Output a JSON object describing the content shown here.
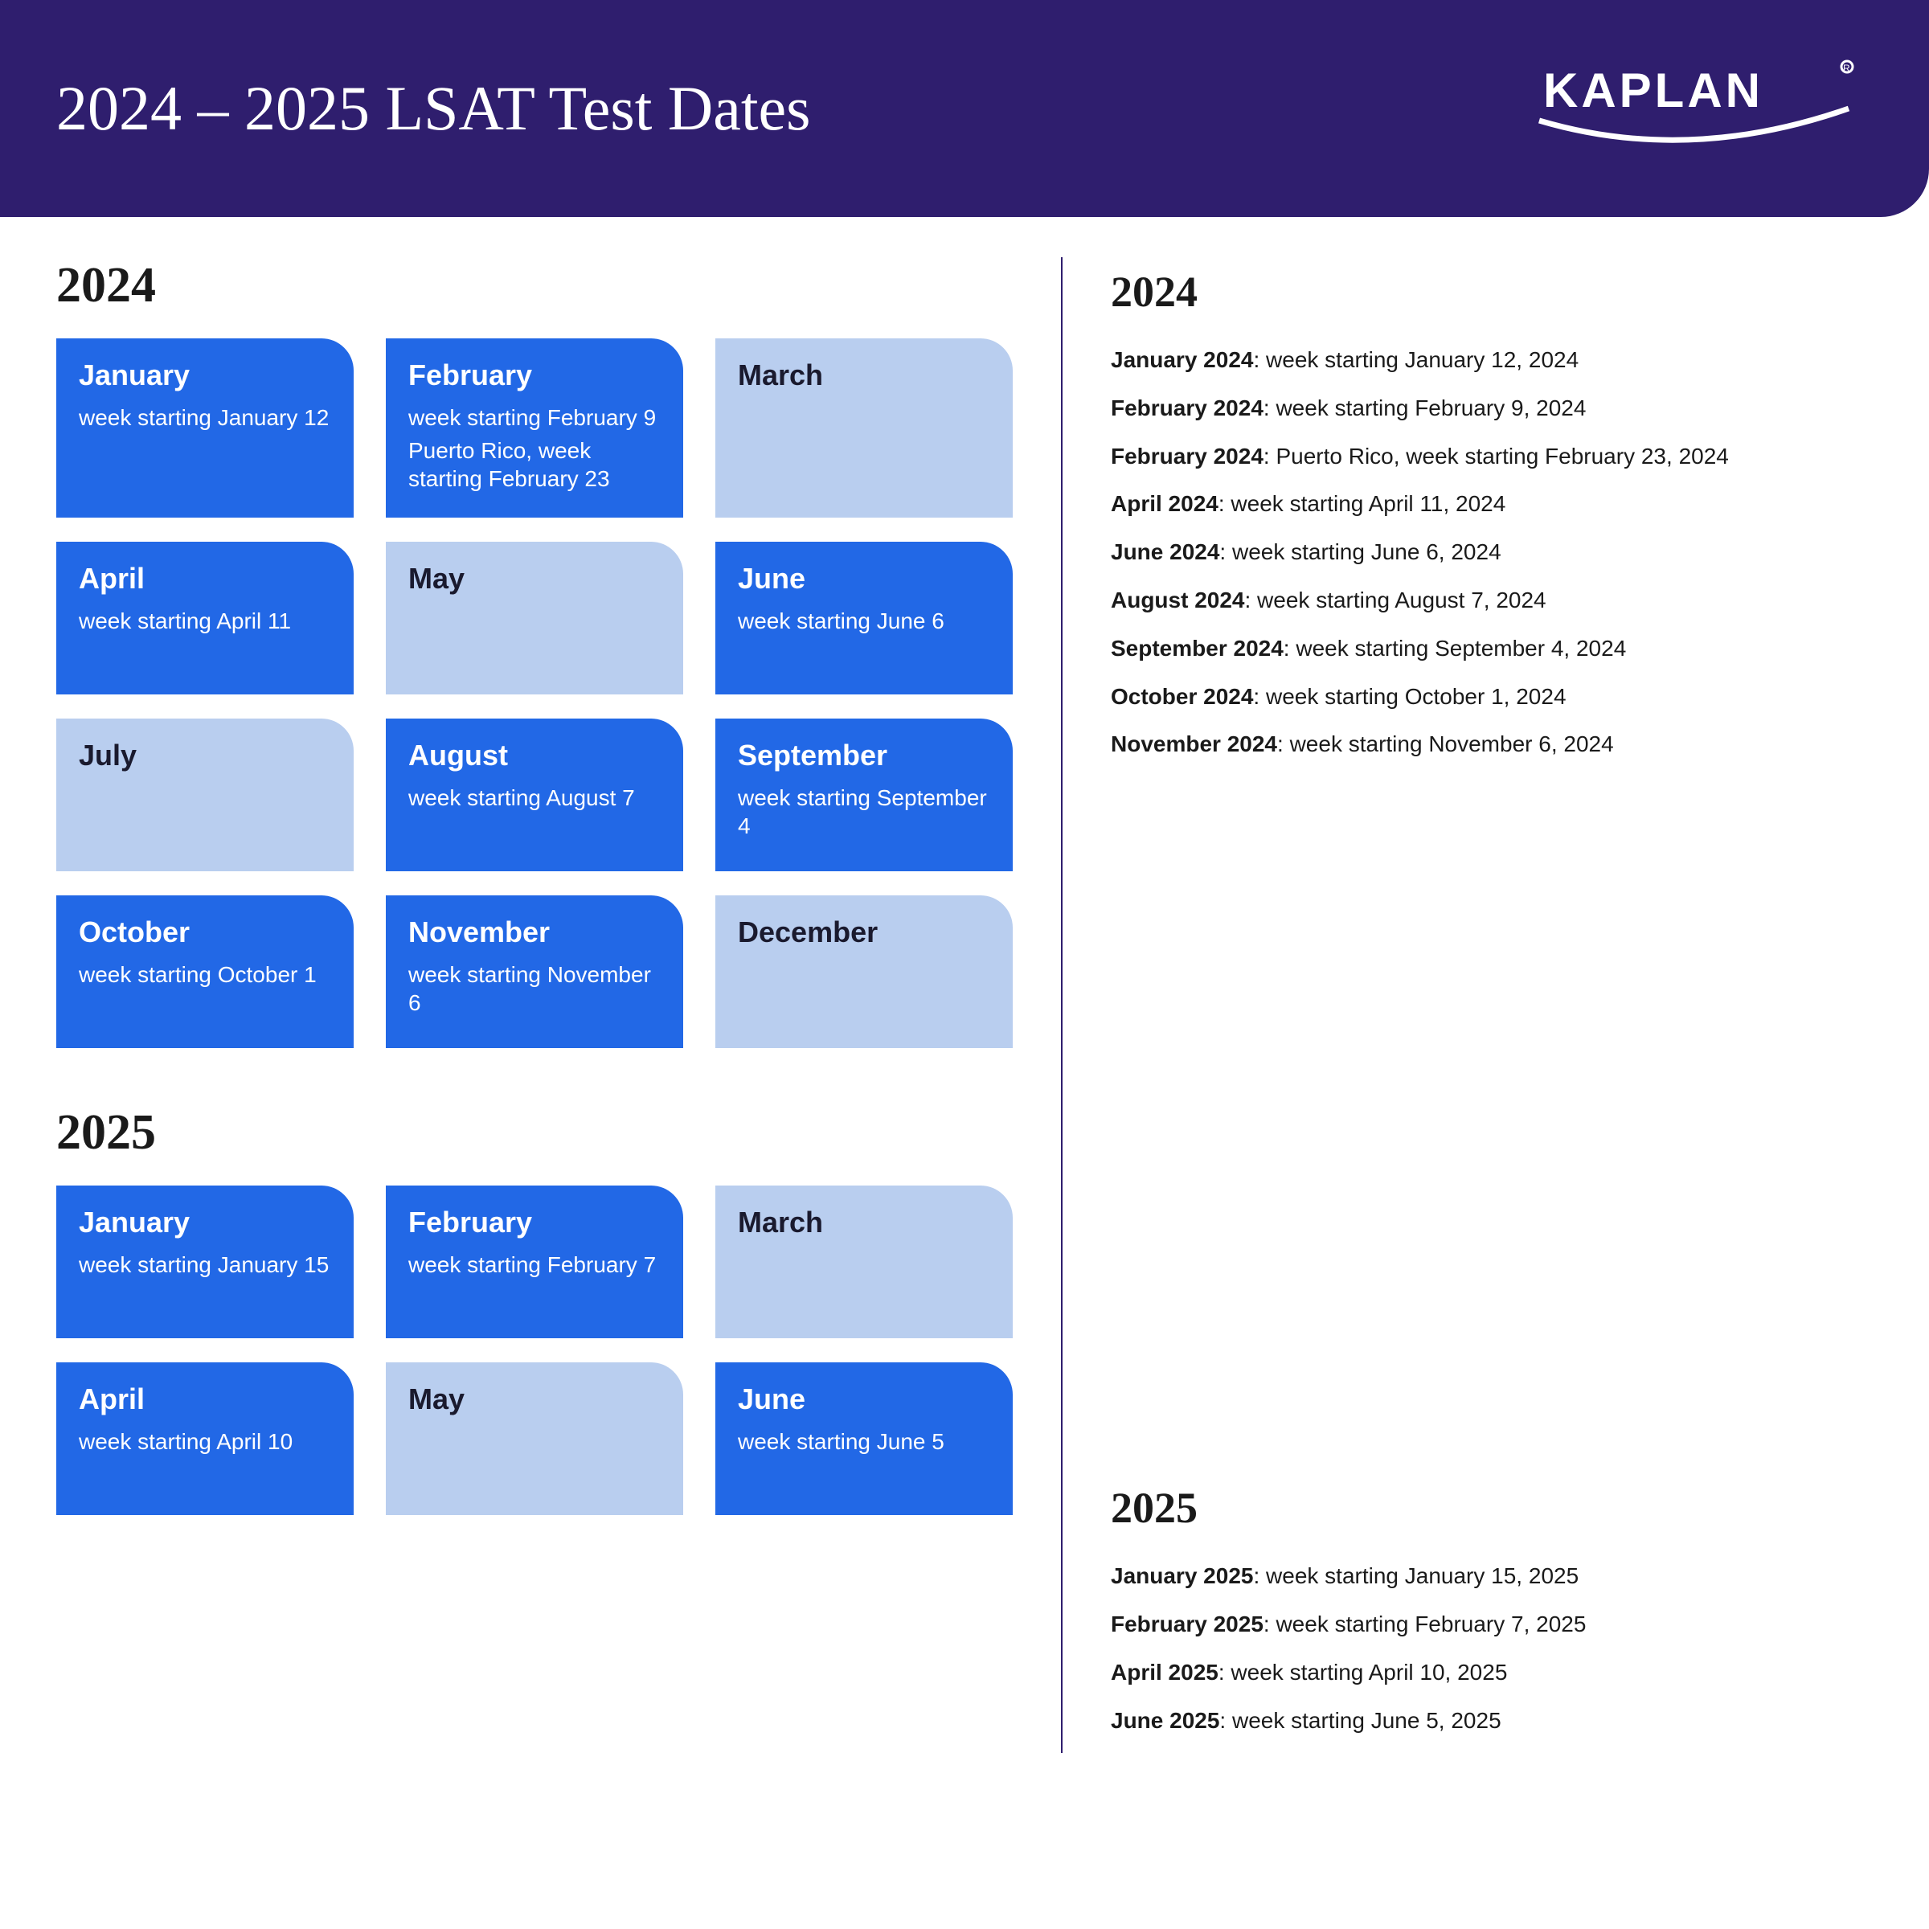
{
  "header": {
    "title": "2024 – 2025 LSAT Test Dates",
    "brand": "KAPLAN",
    "bg_color": "#2f1e6e",
    "title_color": "#ffffff",
    "title_fontsize": 78
  },
  "colors": {
    "active_card_bg": "#2268e6",
    "active_card_text": "#ffffff",
    "inactive_card_bg": "#b9ceef",
    "inactive_card_text": "#1a1a2e",
    "divider": "#2f1e6e",
    "page_bg": "#ffffff"
  },
  "left": {
    "year1": {
      "label": "2024",
      "cards": [
        {
          "month": "January",
          "active": true,
          "lines": [
            "week starting January 12"
          ]
        },
        {
          "month": "February",
          "active": true,
          "lines": [
            "week starting February 9",
            "Puerto Rico, week starting February 23"
          ]
        },
        {
          "month": "March",
          "active": false,
          "lines": []
        },
        {
          "month": "April",
          "active": true,
          "lines": [
            "week starting April 11"
          ]
        },
        {
          "month": "May",
          "active": false,
          "lines": []
        },
        {
          "month": "June",
          "active": true,
          "lines": [
            "week starting June 6"
          ]
        },
        {
          "month": "July",
          "active": false,
          "lines": []
        },
        {
          "month": "August",
          "active": true,
          "lines": [
            "week starting August 7"
          ]
        },
        {
          "month": "September",
          "active": true,
          "lines": [
            "week starting September 4"
          ]
        },
        {
          "month": "October",
          "active": true,
          "lines": [
            "week starting October 1"
          ]
        },
        {
          "month": "November",
          "active": true,
          "lines": [
            "week starting November 6"
          ]
        },
        {
          "month": "December",
          "active": false,
          "lines": []
        }
      ]
    },
    "year2": {
      "label": "2025",
      "cards": [
        {
          "month": "January",
          "active": true,
          "lines": [
            "week starting January 15"
          ]
        },
        {
          "month": "February",
          "active": true,
          "lines": [
            "week starting February 7"
          ]
        },
        {
          "month": "March",
          "active": false,
          "lines": []
        },
        {
          "month": "April",
          "active": true,
          "lines": [
            "week starting April 10"
          ]
        },
        {
          "month": "May",
          "active": false,
          "lines": []
        },
        {
          "month": "June",
          "active": true,
          "lines": [
            "week starting June 5"
          ]
        }
      ]
    }
  },
  "right": {
    "year1": {
      "label": "2024",
      "items": [
        {
          "lead": "January 2024",
          "rest": ": week starting January 12, 2024"
        },
        {
          "lead": "February 2024",
          "rest": ": week starting February 9, 2024"
        },
        {
          "lead": "February 2024",
          "rest": ": Puerto Rico, week starting February 23, 2024"
        },
        {
          "lead": "April 2024",
          "rest": ": week starting April 11, 2024"
        },
        {
          "lead": "June 2024",
          "rest": ": week starting June 6, 2024"
        },
        {
          "lead": "August 2024",
          "rest": ": week starting August 7, 2024"
        },
        {
          "lead": "September 2024",
          "rest": ": week starting September 4, 2024"
        },
        {
          "lead": "October 2024",
          "rest": ": week starting October 1, 2024"
        },
        {
          "lead": "November 2024",
          "rest": ": week starting November 6, 2024"
        }
      ]
    },
    "year2": {
      "label": "2025",
      "items": [
        {
          "lead": "January 2025",
          "rest": ": week starting January 15, 2025"
        },
        {
          "lead": "February 2025",
          "rest": ": week starting February 7, 2025"
        },
        {
          "lead": "April 2025",
          "rest": ": week starting April 10, 2025"
        },
        {
          "lead": "June 2025",
          "rest": ": week starting June 5, 2025"
        }
      ]
    }
  }
}
